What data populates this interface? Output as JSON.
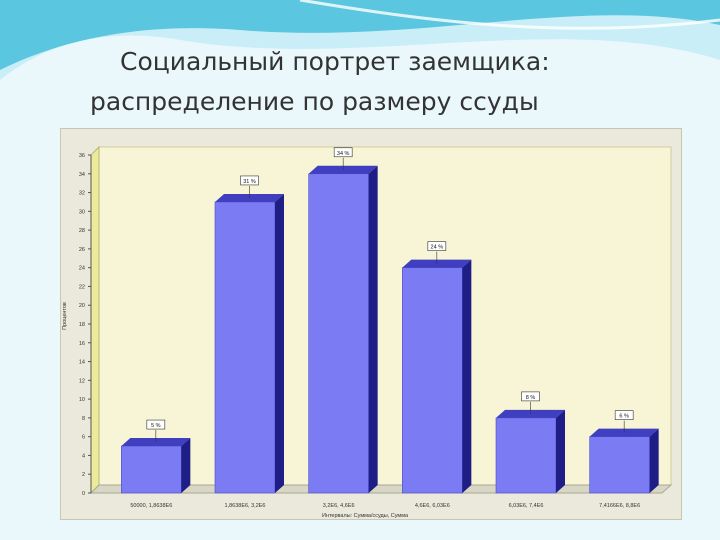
{
  "slide": {
    "title_line1": "Социальный портрет заемщика:",
    "title_line2": "распределение по размеру ссуды",
    "colors": {
      "background": "#eaf8fc",
      "wave_dark": "#4fc1dc",
      "wave_light": "#c9eef7",
      "panel": "#ebe9db"
    }
  },
  "chart_data": {
    "type": "bar",
    "title": "",
    "ylabel": "Процентов",
    "xlabel": "Интервалы: Сумма/ссуды, Сумма",
    "categories": [
      "50000, 1,8638E6",
      "1,8638E6, 3,2E6",
      "3,2E6, 4,6E6",
      "4,6E6, 6,03E6",
      "6,03E6, 7,4E6",
      "7,4166E6, 8,8E6"
    ],
    "values": [
      5,
      31,
      34,
      24,
      8,
      6
    ],
    "data_labels": [
      "5 %",
      "31 %",
      "34 %",
      "24 %",
      "8 %",
      "6 %"
    ],
    "yticks": [
      0,
      2,
      4,
      6,
      8,
      10,
      12,
      14,
      16,
      18,
      20,
      22,
      24,
      26,
      28,
      30,
      32,
      34,
      36
    ],
    "ylim": [
      0,
      36
    ],
    "grid": false,
    "bar_style": "3d",
    "colors": {
      "bar_front": "#7b7bf4",
      "bar_top": "#3f3fc0",
      "bar_side": "#1e1e86",
      "wall": "#f7f5d6",
      "wall_left": "#eceb9a",
      "floor": "#d8d6c4",
      "axis": "#555555"
    }
  }
}
